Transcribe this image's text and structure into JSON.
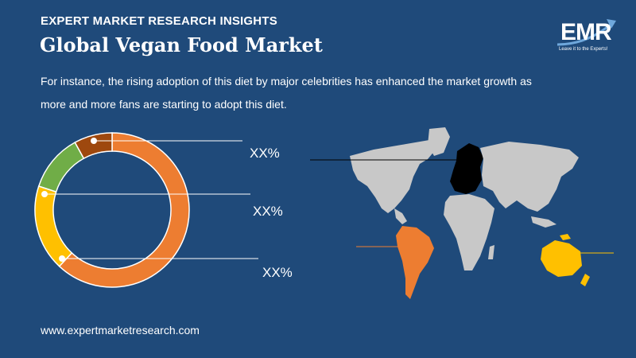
{
  "header": {
    "eyebrow": "EXPERT MARKET RESEARCH INSIGHTS",
    "title": "Global Vegan Food Market",
    "description": "For instance, the rising adoption of this diet by major celebrities has enhanced the market growth as more and more fans are starting to adopt this diet."
  },
  "logo": {
    "text": "EMR",
    "tagline": "Leave it to the Experts!"
  },
  "footer": {
    "url": "www.expertmarketresearch.com"
  },
  "colors": {
    "background": "#1f4a7a",
    "orange": "#ed7d31",
    "yellow": "#ffc000",
    "green": "#70ad47",
    "brown": "#9e480e",
    "map_gray": "#c8c8c8",
    "map_europe": "#000000"
  },
  "chart_data": {
    "type": "pie",
    "style": "donut",
    "segments": [
      {
        "color": "#ed7d31",
        "value": 0.62
      },
      {
        "color": "#ffc000",
        "value": 0.18
      },
      {
        "color": "#70ad47",
        "value": 0.12
      },
      {
        "color": "#9e480e",
        "value": 0.08
      }
    ],
    "labels": [
      "XX%",
      "XX%",
      "XX%"
    ]
  },
  "map": {
    "highlighted_regions": [
      {
        "region": "Europe",
        "color": "#000000"
      },
      {
        "region": "South America",
        "color": "#ed7d31"
      },
      {
        "region": "Oceania",
        "color": "#ffc000"
      }
    ]
  }
}
